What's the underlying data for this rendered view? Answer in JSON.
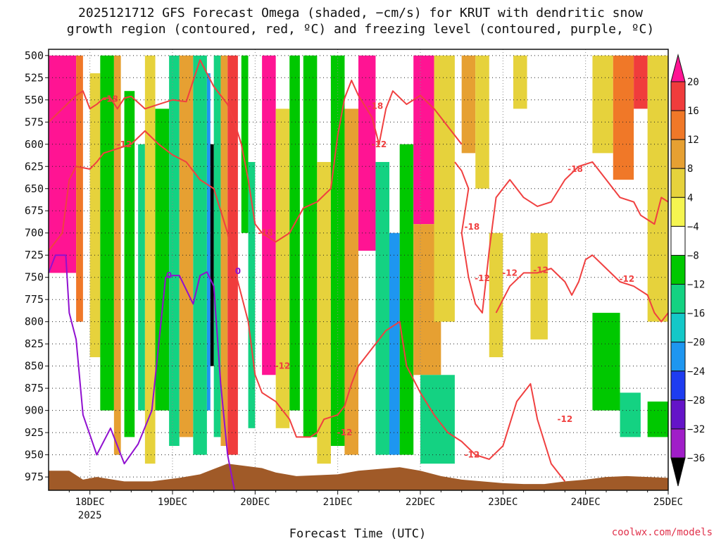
{
  "chart_data": {
    "type": "heatmap",
    "title_line1": "2025121712 GFS Forecast Omega (shaded, −cm/s) for KRUT with dendritic snow",
    "title_line2": "growth region (contoured, red, ºC) and freezing level (contoured, purple, ºC)",
    "xlabel": "Forecast Time (UTC)",
    "credit": "coolwx.com/models",
    "x_ticks": [
      {
        "hour": 12,
        "label": "18DEC",
        "sublabel": "2025"
      },
      {
        "hour": 36,
        "label": "19DEC"
      },
      {
        "hour": 60,
        "label": "20DEC"
      },
      {
        "hour": 84,
        "label": "21DEC"
      },
      {
        "hour": 108,
        "label": "22DEC"
      },
      {
        "hour": 132,
        "label": "23DEC"
      },
      {
        "hour": 156,
        "label": "24DEC"
      },
      {
        "hour": 180,
        "label": "25DEC"
      }
    ],
    "x_range_hours": [
      0,
      180
    ],
    "y_levels_hpa": [
      500,
      525,
      550,
      575,
      600,
      625,
      650,
      675,
      700,
      725,
      750,
      775,
      800,
      825,
      850,
      875,
      900,
      925,
      950,
      975
    ],
    "y_tick_labels": [
      "500",
      "525",
      "550",
      "575",
      "600",
      "625",
      "650",
      "675",
      "700",
      "725",
      "750",
      "775",
      "800",
      "825",
      "850",
      "875",
      "900",
      "925",
      "950",
      "975"
    ],
    "colorbar": {
      "labels": [
        "20",
        "16",
        "12",
        "8",
        "4",
        "−4",
        "−8",
        "−12",
        "−16",
        "−20",
        "−24",
        "−28",
        "−32",
        "−36"
      ],
      "colors": [
        "#ff1493",
        "#f03c3c",
        "#f07828",
        "#e6a032",
        "#e6d23c",
        "#f5f550",
        "#ffffff",
        "#00c800",
        "#14d282",
        "#14c8c8",
        "#1e96f0",
        "#1e3cf0",
        "#6414c8",
        "#a01ec8",
        "#a0a0a0",
        "#000000"
      ]
    },
    "omega_bands": [
      {
        "t0": 0,
        "t1": 8,
        "p0": 500,
        "p1": 745,
        "class": 20
      },
      {
        "t0": 8,
        "t1": 10,
        "p0": 500,
        "p1": 800,
        "class": 12
      },
      {
        "t0": 12,
        "t1": 15,
        "p0": 520,
        "p1": 840,
        "class": 4
      },
      {
        "t0": 15,
        "t1": 19,
        "p0": 500,
        "p1": 900,
        "class": -8
      },
      {
        "t0": 19,
        "t1": 21,
        "p0": 500,
        "p1": 950,
        "class": 8
      },
      {
        "t0": 22,
        "t1": 25,
        "p0": 540,
        "p1": 930,
        "class": -8
      },
      {
        "t0": 26,
        "t1": 28,
        "p0": 600,
        "p1": 900,
        "class": -12
      },
      {
        "t0": 28,
        "t1": 31,
        "p0": 500,
        "p1": 960,
        "class": 4
      },
      {
        "t0": 31,
        "t1": 35,
        "p0": 560,
        "p1": 900,
        "class": -8
      },
      {
        "t0": 35,
        "t1": 38,
        "p0": 500,
        "p1": 940,
        "class": -12
      },
      {
        "t0": 38,
        "t1": 42,
        "p0": 500,
        "p1": 930,
        "class": 8
      },
      {
        "t0": 42,
        "t1": 46,
        "p0": 500,
        "p1": 950,
        "class": -12
      },
      {
        "t0": 46,
        "t1": 47,
        "p0": 520,
        "p1": 900,
        "class": -20
      },
      {
        "t0": 47,
        "t1": 48,
        "p0": 600,
        "p1": 850,
        "class": -36
      },
      {
        "t0": 48,
        "t1": 50,
        "p0": 500,
        "p1": 930,
        "class": -12
      },
      {
        "t0": 50,
        "t1": 52,
        "p0": 500,
        "p1": 940,
        "class": 8
      },
      {
        "t0": 52,
        "t1": 55,
        "p0": 500,
        "p1": 950,
        "class": 16
      },
      {
        "t0": 56,
        "t1": 58,
        "p0": 500,
        "p1": 700,
        "class": -8
      },
      {
        "t0": 58,
        "t1": 60,
        "p0": 620,
        "p1": 920,
        "class": -12
      },
      {
        "t0": 62,
        "t1": 66,
        "p0": 500,
        "p1": 860,
        "class": 20
      },
      {
        "t0": 66,
        "t1": 70,
        "p0": 560,
        "p1": 920,
        "class": 4
      },
      {
        "t0": 70,
        "t1": 73,
        "p0": 500,
        "p1": 900,
        "class": -8
      },
      {
        "t0": 74,
        "t1": 78,
        "p0": 500,
        "p1": 930,
        "class": -8
      },
      {
        "t0": 78,
        "t1": 82,
        "p0": 620,
        "p1": 960,
        "class": 4
      },
      {
        "t0": 82,
        "t1": 86,
        "p0": 500,
        "p1": 940,
        "class": -8
      },
      {
        "t0": 86,
        "t1": 90,
        "p0": 560,
        "p1": 950,
        "class": 8
      },
      {
        "t0": 90,
        "t1": 95,
        "p0": 500,
        "p1": 720,
        "class": 20
      },
      {
        "t0": 95,
        "t1": 99,
        "p0": 620,
        "p1": 950,
        "class": -12
      },
      {
        "t0": 99,
        "t1": 102,
        "p0": 700,
        "p1": 950,
        "class": -20
      },
      {
        "t0": 102,
        "t1": 106,
        "p0": 600,
        "p1": 950,
        "class": -8
      },
      {
        "t0": 106,
        "t1": 112,
        "p0": 500,
        "p1": 690,
        "class": 20
      },
      {
        "t0": 106,
        "t1": 114,
        "p0": 690,
        "p1": 860,
        "class": 8
      },
      {
        "t0": 108,
        "t1": 118,
        "p0": 860,
        "p1": 960,
        "class": -12
      },
      {
        "t0": 112,
        "t1": 118,
        "p0": 500,
        "p1": 800,
        "class": 4
      },
      {
        "t0": 120,
        "t1": 124,
        "p0": 500,
        "p1": 610,
        "class": 8
      },
      {
        "t0": 124,
        "t1": 128,
        "p0": 500,
        "p1": 650,
        "class": 4
      },
      {
        "t0": 128,
        "t1": 132,
        "p0": 700,
        "p1": 840,
        "class": 4
      },
      {
        "t0": 135,
        "t1": 139,
        "p0": 500,
        "p1": 560,
        "class": 4
      },
      {
        "t0": 140,
        "t1": 145,
        "p0": 700,
        "p1": 820,
        "class": 4
      },
      {
        "t0": 158,
        "t1": 164,
        "p0": 500,
        "p1": 610,
        "class": 4
      },
      {
        "t0": 164,
        "t1": 170,
        "p0": 500,
        "p1": 640,
        "class": 12
      },
      {
        "t0": 170,
        "t1": 174,
        "p0": 500,
        "p1": 560,
        "class": 16
      },
      {
        "t0": 174,
        "t1": 180,
        "p0": 500,
        "p1": 800,
        "class": 4
      },
      {
        "t0": 158,
        "t1": 166,
        "p0": 790,
        "p1": 900,
        "class": -8
      },
      {
        "t0": 166,
        "t1": 172,
        "p0": 880,
        "p1": 930,
        "class": -12
      },
      {
        "t0": 174,
        "t1": 180,
        "p0": 890,
        "p1": 930,
        "class": -8
      }
    ],
    "terrain_color": "#a05a28",
    "terrain_surface_hpa": [
      [
        0,
        968
      ],
      [
        6,
        968
      ],
      [
        10,
        978
      ],
      [
        14,
        975
      ],
      [
        22,
        980
      ],
      [
        30,
        980
      ],
      [
        38,
        976
      ],
      [
        44,
        972
      ],
      [
        48,
        966
      ],
      [
        52,
        960
      ],
      [
        56,
        962
      ],
      [
        62,
        965
      ],
      [
        66,
        970
      ],
      [
        72,
        974
      ],
      [
        78,
        973
      ],
      [
        84,
        972
      ],
      [
        90,
        968
      ],
      [
        96,
        966
      ],
      [
        102,
        964
      ],
      [
        108,
        968
      ],
      [
        114,
        974
      ],
      [
        120,
        978
      ],
      [
        126,
        980
      ],
      [
        132,
        982
      ],
      [
        138,
        983
      ],
      [
        144,
        983
      ],
      [
        150,
        980
      ],
      [
        156,
        978
      ],
      [
        162,
        975
      ],
      [
        168,
        974
      ],
      [
        174,
        975
      ],
      [
        180,
        976
      ]
    ],
    "freezing_level": {
      "label": "0",
      "color": "#9010d0",
      "points": [
        [
          0,
          745
        ],
        [
          2,
          725
        ],
        [
          5,
          725
        ],
        [
          6,
          790
        ],
        [
          8,
          820
        ],
        [
          10,
          905
        ],
        [
          14,
          950
        ],
        [
          18,
          920
        ],
        [
          22,
          960
        ],
        [
          26,
          938
        ],
        [
          30,
          900
        ],
        [
          34,
          750
        ],
        [
          36,
          748
        ],
        [
          38,
          748
        ],
        [
          42,
          780
        ],
        [
          44,
          748
        ],
        [
          46,
          744
        ],
        [
          48,
          760
        ],
        [
          50,
          870
        ],
        [
          52,
          950
        ],
        [
          54,
          990
        ]
      ],
      "label_points": [
        [
          35,
          748
        ],
        [
          55,
          743
        ]
      ]
    },
    "dgz_contours": [
      {
        "label": "-18",
        "color": "#f04040",
        "points": [
          [
            0,
            575
          ],
          [
            4,
            560
          ],
          [
            8,
            545
          ],
          [
            10,
            540
          ],
          [
            12,
            560
          ],
          [
            14,
            555
          ],
          [
            16,
            548
          ],
          [
            18,
            548
          ],
          [
            20,
            560
          ],
          [
            22,
            548
          ],
          [
            24,
            546
          ],
          [
            28,
            560
          ],
          [
            32,
            555
          ],
          [
            36,
            550
          ],
          [
            40,
            552
          ],
          [
            44,
            505
          ],
          [
            48,
            535
          ],
          [
            52,
            555
          ],
          [
            54,
            575
          ],
          [
            56,
            600
          ],
          [
            58,
            640
          ],
          [
            60,
            690
          ],
          [
            62,
            700
          ],
          [
            66,
            710
          ],
          [
            70,
            700
          ],
          [
            74,
            672
          ],
          [
            78,
            665
          ],
          [
            82,
            650
          ],
          [
            84,
            590
          ],
          [
            86,
            548
          ],
          [
            88,
            528
          ],
          [
            90,
            545
          ],
          [
            94,
            570
          ],
          [
            96,
            600
          ],
          [
            98,
            560
          ],
          [
            100,
            540
          ],
          [
            104,
            555
          ],
          [
            108,
            545
          ],
          [
            112,
            560
          ],
          [
            116,
            580
          ],
          [
            120,
            600
          ]
        ],
        "label_points": [
          [
            18,
            549
          ],
          [
            63,
            700
          ],
          [
            95,
            557
          ]
        ]
      },
      {
        "label": "-12",
        "color": "#f04040",
        "points": [
          [
            0,
            720
          ],
          [
            4,
            700
          ],
          [
            6,
            640
          ],
          [
            8,
            625
          ],
          [
            12,
            628
          ],
          [
            14,
            620
          ],
          [
            16,
            610
          ],
          [
            20,
            605
          ],
          [
            24,
            600
          ],
          [
            28,
            585
          ],
          [
            32,
            600
          ],
          [
            36,
            612
          ],
          [
            40,
            620
          ],
          [
            44,
            640
          ],
          [
            48,
            650
          ],
          [
            52,
            700
          ],
          [
            54,
            740
          ],
          [
            58,
            800
          ],
          [
            60,
            860
          ],
          [
            62,
            880
          ],
          [
            66,
            890
          ],
          [
            70,
            910
          ],
          [
            72,
            930
          ],
          [
            76,
            930
          ],
          [
            78,
            925
          ],
          [
            80,
            910
          ],
          [
            84,
            905
          ],
          [
            86,
            895
          ],
          [
            88,
            870
          ],
          [
            90,
            850
          ],
          [
            94,
            830
          ],
          [
            98,
            810
          ],
          [
            102,
            800
          ],
          [
            104,
            850
          ],
          [
            108,
            880
          ],
          [
            112,
            905
          ],
          [
            116,
            925
          ],
          [
            120,
            935
          ],
          [
            124,
            950
          ],
          [
            128,
            955
          ],
          [
            132,
            940
          ],
          [
            136,
            890
          ],
          [
            140,
            870
          ],
          [
            142,
            910
          ],
          [
            146,
            960
          ],
          [
            150,
            980
          ]
        ],
        "label_points": [
          [
            22,
            600
          ],
          [
            68,
            850
          ],
          [
            86,
            925
          ],
          [
            96,
            600
          ],
          [
            123,
            950
          ],
          [
            150,
            910
          ]
        ]
      },
      {
        "label": "-18",
        "color": "#f04040",
        "points": [
          [
            118,
            620
          ],
          [
            120,
            630
          ],
          [
            122,
            650
          ],
          [
            120,
            700
          ],
          [
            122,
            750
          ],
          [
            124,
            780
          ],
          [
            126,
            790
          ],
          [
            128,
            720
          ],
          [
            130,
            660
          ],
          [
            134,
            640
          ],
          [
            138,
            660
          ],
          [
            142,
            670
          ],
          [
            146,
            665
          ],
          [
            150,
            640
          ],
          [
            154,
            625
          ],
          [
            158,
            620
          ],
          [
            162,
            640
          ],
          [
            166,
            660
          ],
          [
            170,
            665
          ],
          [
            172,
            680
          ],
          [
            176,
            690
          ],
          [
            178,
            660
          ],
          [
            180,
            665
          ]
        ],
        "label_points": [
          [
            123,
            693
          ],
          [
            153,
            628
          ]
        ]
      },
      {
        "label": "-12",
        "color": "#f04040",
        "points": [
          [
            130,
            790
          ],
          [
            134,
            760
          ],
          [
            138,
            745
          ],
          [
            142,
            745
          ],
          [
            146,
            740
          ],
          [
            150,
            755
          ],
          [
            152,
            770
          ],
          [
            154,
            755
          ],
          [
            156,
            730
          ],
          [
            158,
            725
          ],
          [
            162,
            740
          ],
          [
            166,
            755
          ],
          [
            170,
            760
          ],
          [
            174,
            770
          ],
          [
            176,
            790
          ],
          [
            178,
            800
          ],
          [
            180,
            790
          ]
        ],
        "label_points": [
          [
            126,
            751
          ],
          [
            134,
            745
          ],
          [
            143,
            742
          ],
          [
            168,
            752
          ]
        ]
      }
    ]
  }
}
